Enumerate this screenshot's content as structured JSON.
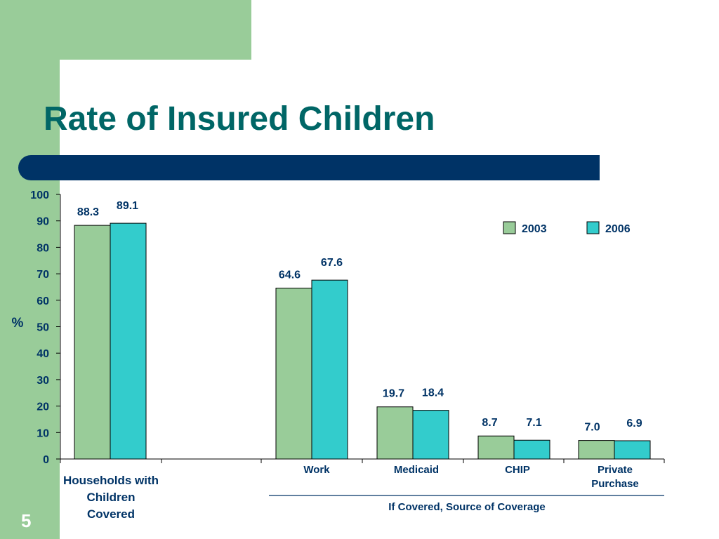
{
  "slide": {
    "title": "Rate of Insured Children",
    "number": "5"
  },
  "colors": {
    "accent_green": "#99cc99",
    "title_color": "#006666",
    "bar_navy": "#003366",
    "series_2003": "#99cc99",
    "series_2006": "#33cccc",
    "text": "#003366"
  },
  "chart_data": {
    "type": "bar",
    "title": "",
    "ylabel": "%",
    "ylim": [
      0,
      100
    ],
    "yticks": [
      "0",
      "10",
      "20",
      "30",
      "40",
      "50",
      "60",
      "70",
      "80",
      "90",
      "100"
    ],
    "categories": [
      {
        "lines": [
          "Households with",
          "Children",
          "Covered"
        ]
      },
      {
        "lines": [
          "Work"
        ]
      },
      {
        "lines": [
          "Medicaid"
        ]
      },
      {
        "lines": [
          "CHIP"
        ]
      },
      {
        "lines": [
          "Private",
          "Purchase"
        ]
      }
    ],
    "group_label": "If Covered, Source of Coverage",
    "legend": "top-right",
    "series": [
      {
        "name": "2003",
        "values": [
          88.3,
          64.6,
          19.7,
          8.7,
          7.0
        ],
        "labels": [
          "88.3",
          "64.6",
          "19.7",
          "8.7",
          "7.0"
        ]
      },
      {
        "name": "2006",
        "values": [
          89.1,
          67.6,
          18.4,
          7.1,
          6.9
        ],
        "labels": [
          "89.1",
          "67.6",
          "18.4",
          "7.1",
          "6.9"
        ]
      }
    ]
  }
}
